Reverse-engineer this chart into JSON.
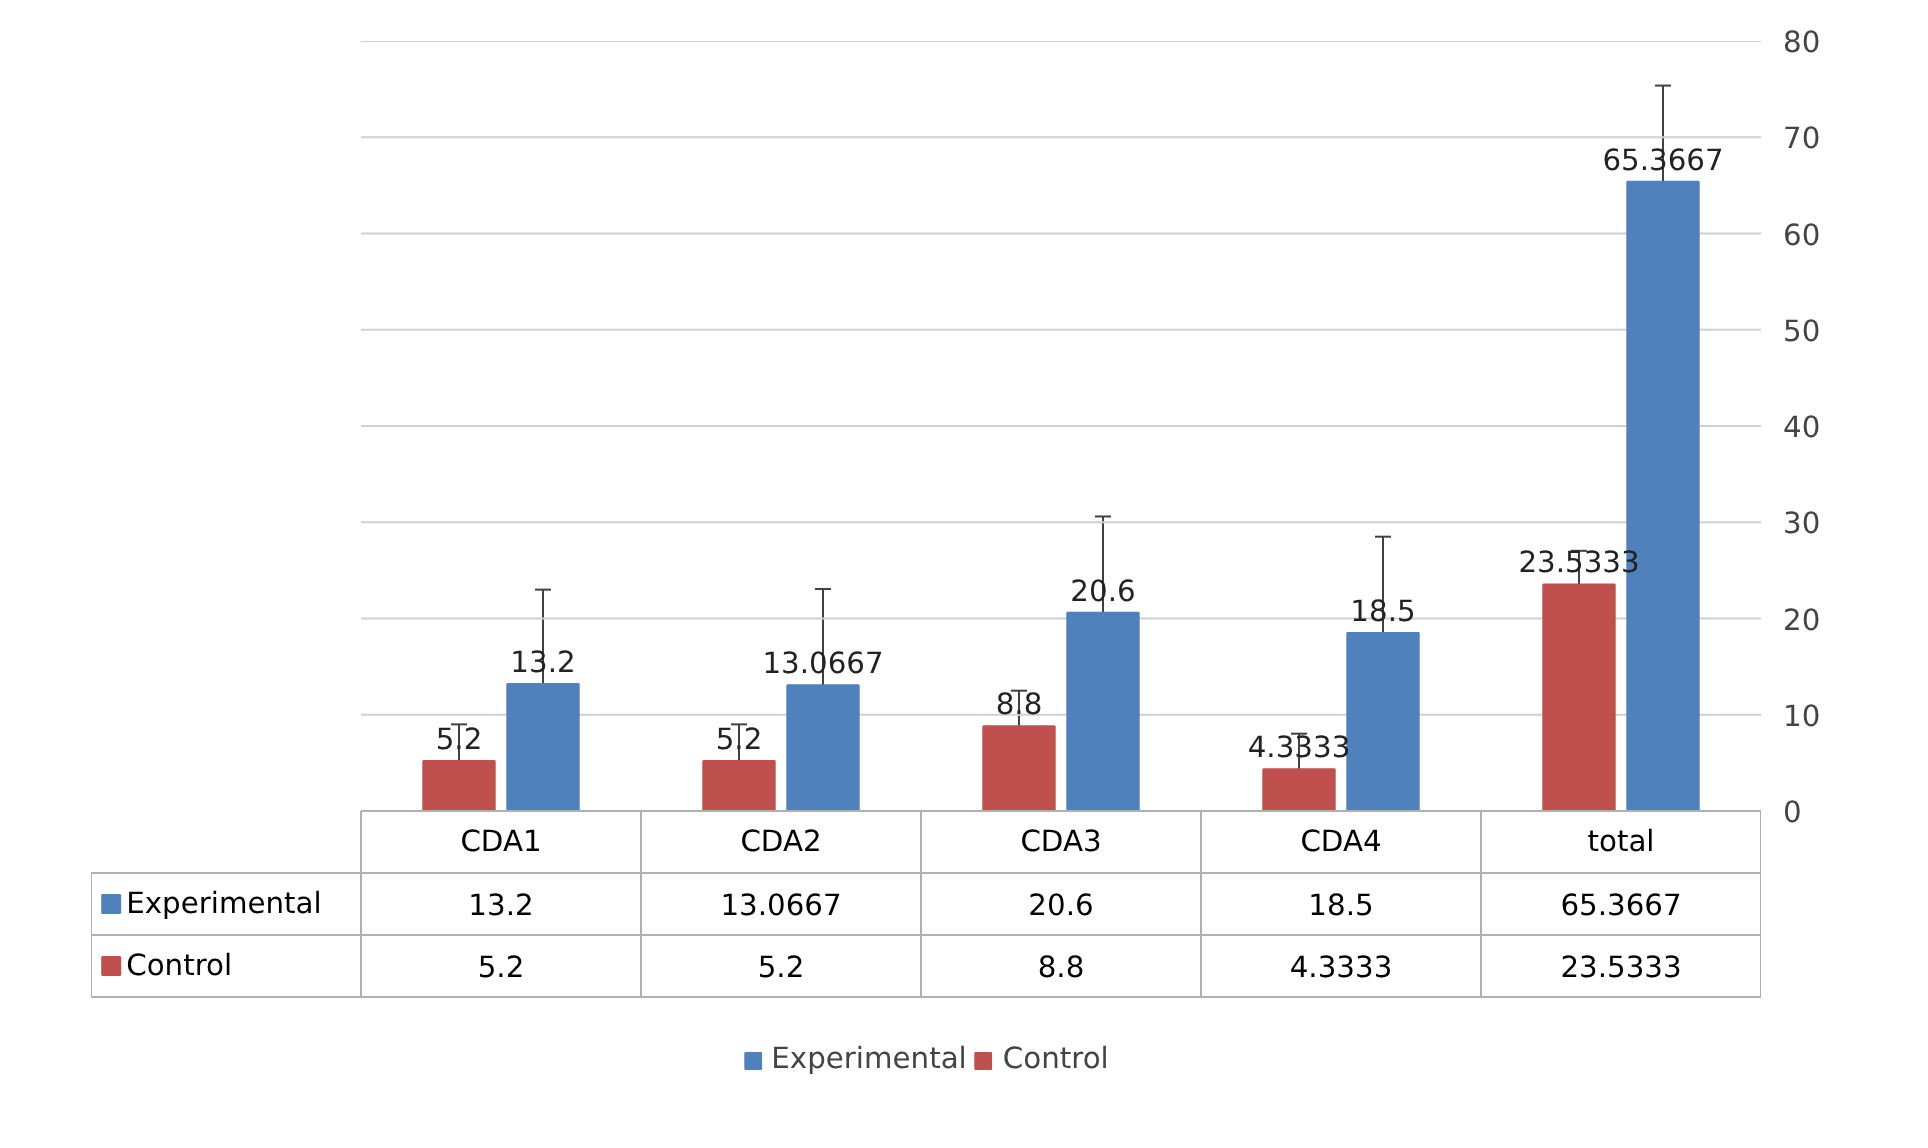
{
  "chart_data": {
    "type": "bar",
    "categories": [
      "CDA1",
      "CDA2",
      "CDA3",
      "CDA4",
      "total"
    ],
    "series": [
      {
        "name": "Control",
        "color": "#c0504d",
        "values": [
          5.2,
          5.2,
          8.8,
          4.3333,
          23.5333
        ],
        "errors": [
          3.8,
          3.8,
          3.7,
          3.7,
          3.5
        ],
        "value_labels": [
          "5.2",
          "5.2",
          "8.8",
          "4.3333",
          "23.5333"
        ]
      },
      {
        "name": "Experimental",
        "color": "#4f81bd",
        "values": [
          13.2,
          13.0667,
          20.6,
          18.5,
          65.3667
        ],
        "errors": [
          9.8,
          10,
          10,
          10,
          10
        ],
        "value_labels": [
          "13.2",
          "13.0667",
          "20.6",
          "18.5",
          "65.3667"
        ]
      }
    ],
    "annotations": [
      "13.2",
      "13.0667",
      "20.6",
      "18.5",
      "65.3667",
      "5.2",
      "5.2",
      "8.8",
      "4.3333",
      "23.5333"
    ],
    "ylim": [
      0,
      80
    ],
    "yticks": [
      0,
      10,
      20,
      30,
      40,
      50,
      60,
      70,
      80
    ],
    "grid": "y",
    "legend": "bottom"
  }
}
